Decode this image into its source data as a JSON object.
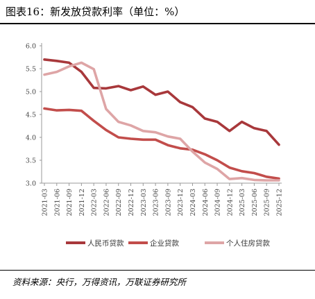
{
  "figure": {
    "title": "图表16：新发放贷款利率（单位：%）",
    "source": "资料来源：央行，万得资讯，万联证券研究所"
  },
  "chart_data": {
    "type": "line",
    "title": "",
    "xlabel": "",
    "ylabel": "",
    "ylim": [
      3.0,
      6.0
    ],
    "yticks": [
      "6.0",
      "5.5",
      "5.0",
      "4.5",
      "4.0",
      "3.5",
      "3.0"
    ],
    "grid": false,
    "legend_position": "bottom",
    "x": [
      "2021-03",
      "2021-06",
      "2021-09",
      "2021-12",
      "2022-03",
      "2022-06",
      "2022-09",
      "2022-12",
      "2023-03",
      "2023-06",
      "2023-09",
      "2023-12",
      "2024-03",
      "2024-06",
      "2024-09",
      "2024-12",
      "2025-03",
      "2025-06",
      "2025-09",
      "2025-12"
    ],
    "series": [
      {
        "name": "人民币贷款",
        "color": "#a8383b",
        "values": [
          5.7,
          5.67,
          5.63,
          5.43,
          5.08,
          5.07,
          5.12,
          5.03,
          5.11,
          4.93,
          5.0,
          4.77,
          4.66,
          4.41,
          4.34,
          4.14,
          4.34,
          4.2,
          4.14,
          3.84
        ]
      },
      {
        "name": "企业贷款",
        "color": "#c24d4b",
        "values": [
          4.63,
          4.59,
          4.6,
          4.58,
          4.36,
          4.16,
          4.0,
          3.97,
          3.95,
          3.95,
          3.83,
          3.76,
          3.73,
          3.63,
          3.5,
          3.34,
          3.26,
          3.22,
          3.14,
          3.1
        ]
      },
      {
        "name": "个人住房贷款",
        "color": "#dea5a6",
        "values": [
          5.37,
          5.43,
          5.55,
          5.63,
          5.49,
          4.62,
          4.34,
          4.26,
          4.14,
          4.11,
          4.02,
          3.97,
          3.69,
          3.45,
          3.31,
          3.09,
          3.11,
          3.07,
          3.06,
          3.06
        ]
      }
    ]
  }
}
